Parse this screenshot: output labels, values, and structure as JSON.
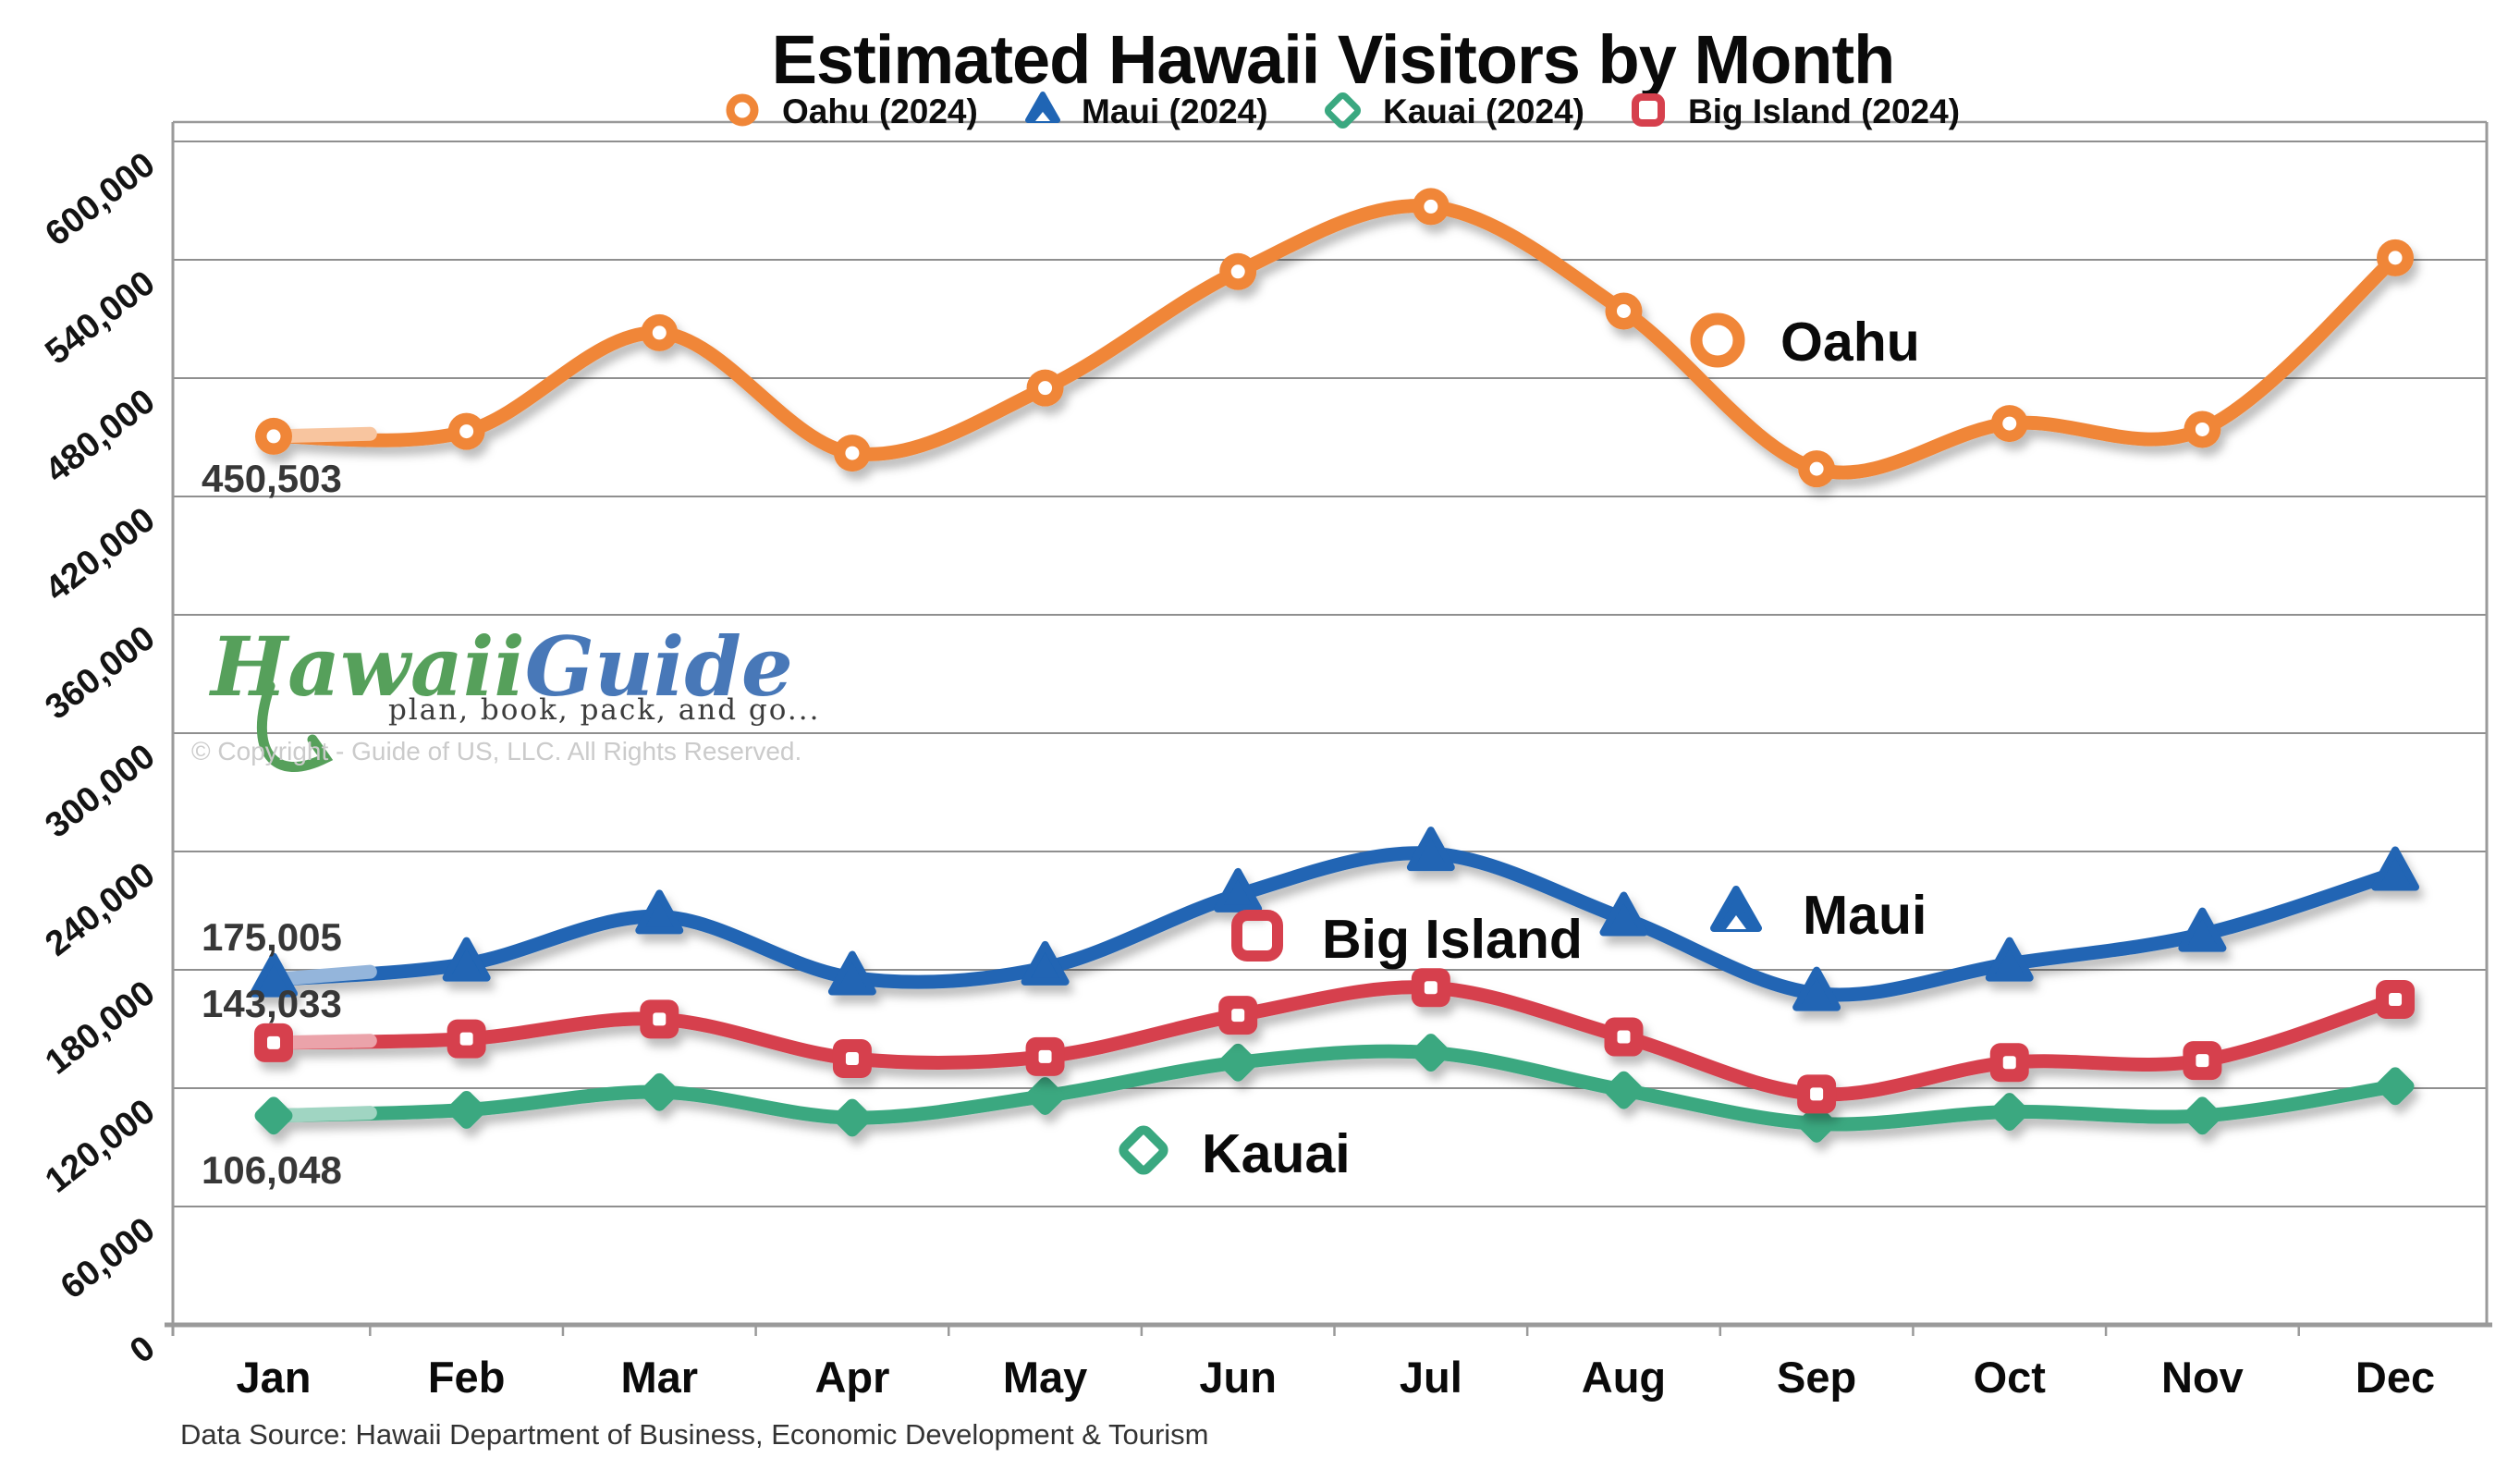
{
  "chart_data": {
    "type": "line",
    "title": "Estimated Hawaii Visitors by Month",
    "categories": [
      "Jan",
      "Feb",
      "Mar",
      "Apr",
      "May",
      "Jun",
      "Jul",
      "Aug",
      "Sep",
      "Oct",
      "Nov",
      "Dec"
    ],
    "ylim": [
      0,
      610000
    ],
    "ytick_interval": 60000,
    "grid": true,
    "legend_position": "top",
    "y_axis": {
      "ticks": [
        "0",
        "60,000",
        "120,000",
        "180,000",
        "240,000",
        "300,000",
        "360,000",
        "420,000",
        "480,000",
        "540,000",
        "600,000"
      ]
    },
    "series": [
      {
        "name": "Oahu (2024)",
        "inline_label": "Oahu",
        "marker": "circle",
        "color": "#F08638",
        "values": [
          450503,
          453000,
          503000,
          442000,
          475000,
          534000,
          567000,
          514000,
          434000,
          457000,
          454000,
          541000
        ]
      },
      {
        "name": "Maui (2024)",
        "inline_label": "Maui",
        "marker": "triangle",
        "color": "#2065B4",
        "values": [
          175005,
          183000,
          207000,
          176000,
          181000,
          218000,
          239000,
          206000,
          168000,
          183000,
          198000,
          229000
        ]
      },
      {
        "name": "Kauai (2024)",
        "inline_label": "Kauai",
        "marker": "diamond",
        "color": "#3AA880",
        "values": [
          106048,
          109000,
          118000,
          105000,
          116000,
          133000,
          138000,
          119000,
          102000,
          108000,
          106000,
          121000
        ]
      },
      {
        "name": "Big Island (2024)",
        "inline_label": "Big Island",
        "marker": "square",
        "color": "#D6404D",
        "values": [
          143033,
          145000,
          155000,
          135000,
          136000,
          157000,
          171000,
          146000,
          117000,
          133000,
          134000,
          165000
        ]
      }
    ],
    "annotations": [
      {
        "series": "Oahu (2024)",
        "month": "Jan",
        "text": "450,503"
      },
      {
        "series": "Maui (2024)",
        "month": "Jan",
        "text": "175,005"
      },
      {
        "series": "Big Island (2024)",
        "month": "Jan",
        "text": "143,033"
      },
      {
        "series": "Kauai (2024)",
        "month": "Jan",
        "text": "106,048"
      }
    ]
  },
  "legend": {
    "items": [
      {
        "label": "Oahu (2024)",
        "marker": "circle",
        "color": "#F08638"
      },
      {
        "label": "Maui (2024)",
        "marker": "triangle",
        "color": "#2065B4"
      },
      {
        "label": "Kauai (2024)",
        "marker": "diamond",
        "color": "#3AA880"
      },
      {
        "label": "Big Island (2024)",
        "marker": "square",
        "color": "#D6404D"
      }
    ]
  },
  "watermark": {
    "brand_part1": "Hawaii",
    "brand_part2": "Guide",
    "tagline": "plan, book, pack, and go...",
    "copyright": "© Copyright - Guide of US, LLC. All Rights Reserved."
  },
  "footer": {
    "source": "Data Source: Hawaii Department of Business, Economic Development & Tourism"
  },
  "colors": {
    "oahu": "#F08638",
    "maui": "#2065B4",
    "kauai": "#3AA880",
    "big_island": "#D6404D",
    "gridline": "#8f8f8f",
    "axis": "#9a9a9a",
    "annotation_text": "#373737"
  }
}
